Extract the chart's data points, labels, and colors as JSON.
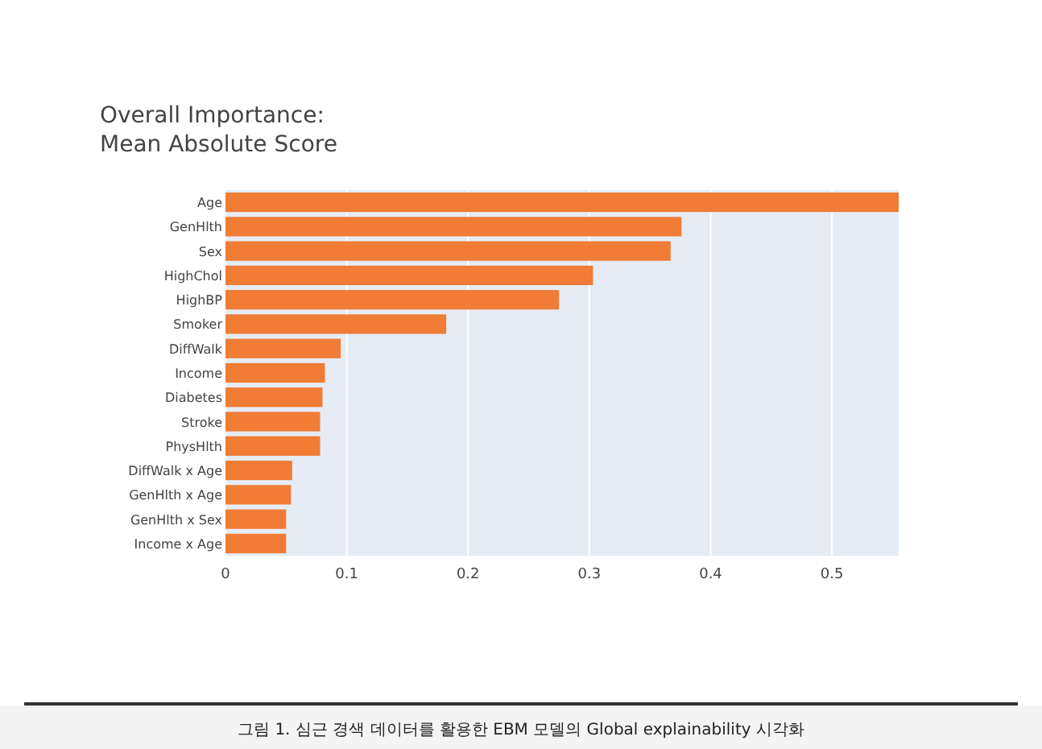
{
  "chart_data": {
    "type": "bar",
    "orientation": "horizontal",
    "title": "Overall Importance:\nMean Absolute Score",
    "categories": [
      "Age",
      "GenHlth",
      "Sex",
      "HighChol",
      "HighBP",
      "Smoker",
      "DiffWalk",
      "Income",
      "Diabetes",
      "Stroke",
      "PhysHlth",
      "DiffWalk x Age",
      "GenHlth x Age",
      "GenHlth x Sex",
      "Income x Age"
    ],
    "values": [
      0.555,
      0.376,
      0.367,
      0.303,
      0.275,
      0.182,
      0.095,
      0.082,
      0.08,
      0.078,
      0.078,
      0.055,
      0.054,
      0.05,
      0.05
    ],
    "color": "#f07c35",
    "xlim": [
      0,
      0.555
    ],
    "xticks": [
      0,
      0.1,
      0.2,
      0.3,
      0.4,
      0.5
    ],
    "grid": "x",
    "annotations": [
      "그림 1. 심근 경색 데이터를 활용한 EBM 모델의 Global explainability 시각화"
    ]
  }
}
